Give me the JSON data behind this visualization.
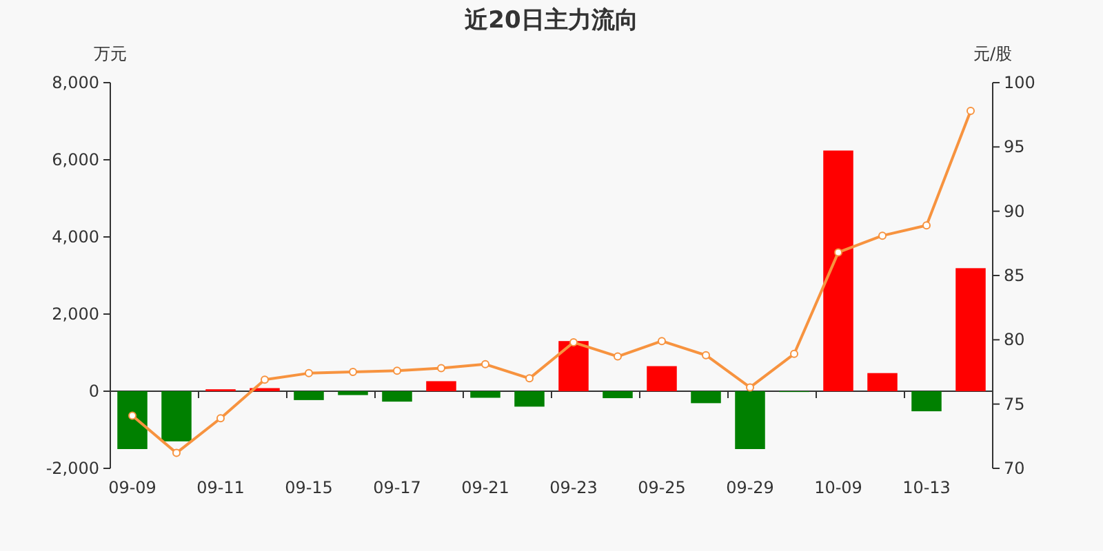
{
  "chart_data": {
    "type": "bar",
    "title": "近20日主力流向",
    "ylabel": "万元",
    "y2label": "元/股",
    "categories": [
      "09-09",
      null,
      "09-11",
      null,
      "09-15",
      null,
      "09-17",
      null,
      "09-21",
      null,
      "09-23",
      null,
      "09-25",
      null,
      "09-29",
      null,
      "10-09",
      null,
      "10-13",
      null
    ],
    "ylim": [
      -2000,
      8000
    ],
    "yticks": [
      {
        "value": -2000,
        "label": "-2,000"
      },
      0,
      {
        "value": 2000,
        "label": "2,000"
      },
      {
        "value": 4000,
        "label": "4,000"
      },
      {
        "value": 6000,
        "label": "6,000"
      },
      {
        "value": 8000,
        "label": "8,000"
      }
    ],
    "y2lim": [
      70,
      100
    ],
    "y2ticks": [
      70,
      75,
      80,
      85,
      90,
      95,
      100
    ],
    "series": [
      {
        "type": "bar",
        "values": [
          -1500,
          -1300,
          50,
          80,
          -230,
          -100,
          -270,
          260,
          -170,
          -400,
          1300,
          -180,
          650,
          -310,
          -1500,
          -20,
          6240,
          470,
          -520,
          3190
        ],
        "colors": [
          "#008000",
          "#008000",
          "#ff0000",
          "#ff0000",
          "#008000",
          "#008000",
          "#008000",
          "#ff0000",
          "#008000",
          "#008000",
          "#ff0000",
          "#008000",
          "#ff0000",
          "#008000",
          "#008000",
          "#008000",
          "#ff0000",
          "#ff0000",
          "#008000",
          "#ff0000"
        ]
      },
      {
        "type": "line",
        "axis": "y2",
        "color": "#f7933f",
        "marker": "circle",
        "values": [
          74.1,
          71.2,
          73.9,
          76.9,
          77.4,
          77.5,
          77.6,
          77.8,
          78.1,
          77.0,
          79.8,
          78.7,
          79.9,
          78.8,
          76.3,
          78.9,
          86.8,
          88.1,
          88.9,
          97.8
        ]
      }
    ]
  }
}
